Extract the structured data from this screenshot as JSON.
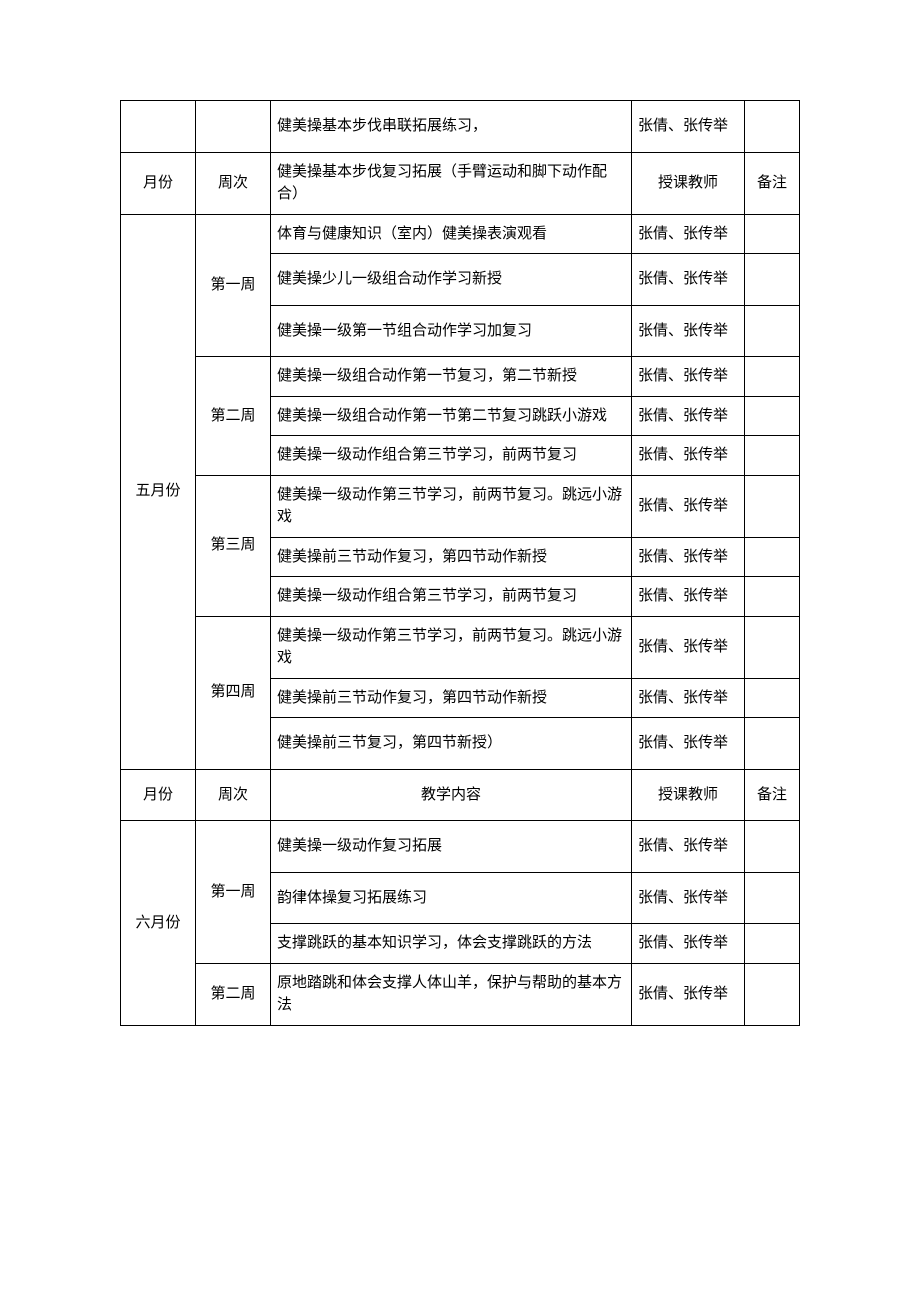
{
  "row0": {
    "content": "健美操基本步伐串联拓展练习，",
    "teacher": "张倩、张传举"
  },
  "header1": {
    "month": "月份",
    "week": "周次",
    "content": "健美操基本步伐复习拓展（手臂运动和脚下动作配合）",
    "teacher": "授课教师",
    "note": "备注"
  },
  "may": {
    "label": "五月份",
    "week1": {
      "label": "第一周",
      "r1_content": "体育与健康知识（室内）健美操表演观看",
      "r1_teacher": "张倩、张传举",
      "r2_content": "健美操少儿一级组合动作学习新授",
      "r2_teacher": "张倩、张传举",
      "r3_content": "健美操一级第一节组合动作学习加复习",
      "r3_teacher": "张倩、张传举"
    },
    "week2": {
      "label": "第二周",
      "r1_content": "健美操一级组合动作第一节复习，第二节新授",
      "r1_teacher": "张倩、张传举",
      "r2_content": "健美操一级组合动作第一节第二节复习跳跃小游戏",
      "r2_teacher": "张倩、张传举",
      "r3_content": "健美操一级动作组合第三节学习，前两节复习",
      "r3_teacher": "张倩、张传举"
    },
    "week3": {
      "label": "第三周",
      "r1_content": "健美操一级动作第三节学习，前两节复习。跳远小游戏",
      "r1_teacher": "张倩、张传举",
      "r2_content": "健美操前三节动作复习，第四节动作新授",
      "r2_teacher": "张倩、张传举",
      "r3_content": "健美操一级动作组合第三节学习，前两节复习",
      "r3_teacher": "张倩、张传举"
    },
    "week4": {
      "label": "第四周",
      "r1_content": "健美操一级动作第三节学习，前两节复习。跳远小游戏",
      "r1_teacher": "张倩、张传举",
      "r2_content": "健美操前三节动作复习，第四节动作新授",
      "r2_teacher": "张倩、张传举",
      "r3_content": "健美操前三节复习，第四节新授）",
      "r3_teacher": "张倩、张传举"
    }
  },
  "header2": {
    "month": "月份",
    "week": "周次",
    "content": "教学内容",
    "teacher": "授课教师",
    "note": "备注"
  },
  "june": {
    "label": "六月份",
    "week1": {
      "label": "第一周",
      "r1_content": "健美操一级动作复习拓展",
      "r1_teacher": "张倩、张传举",
      "r2_content": "韵律体操复习拓展练习",
      "r2_teacher": "张倩、张传举",
      "r3_content": "支撑跳跃的基本知识学习，体会支撑跳跃的方法",
      "r3_teacher": "张倩、张传举"
    },
    "week2": {
      "label": "第二周",
      "r1_content": "原地踏跳和体会支撑人体山羊，保护与帮助的基本方法",
      "r1_teacher": "张倩、张传举"
    }
  }
}
